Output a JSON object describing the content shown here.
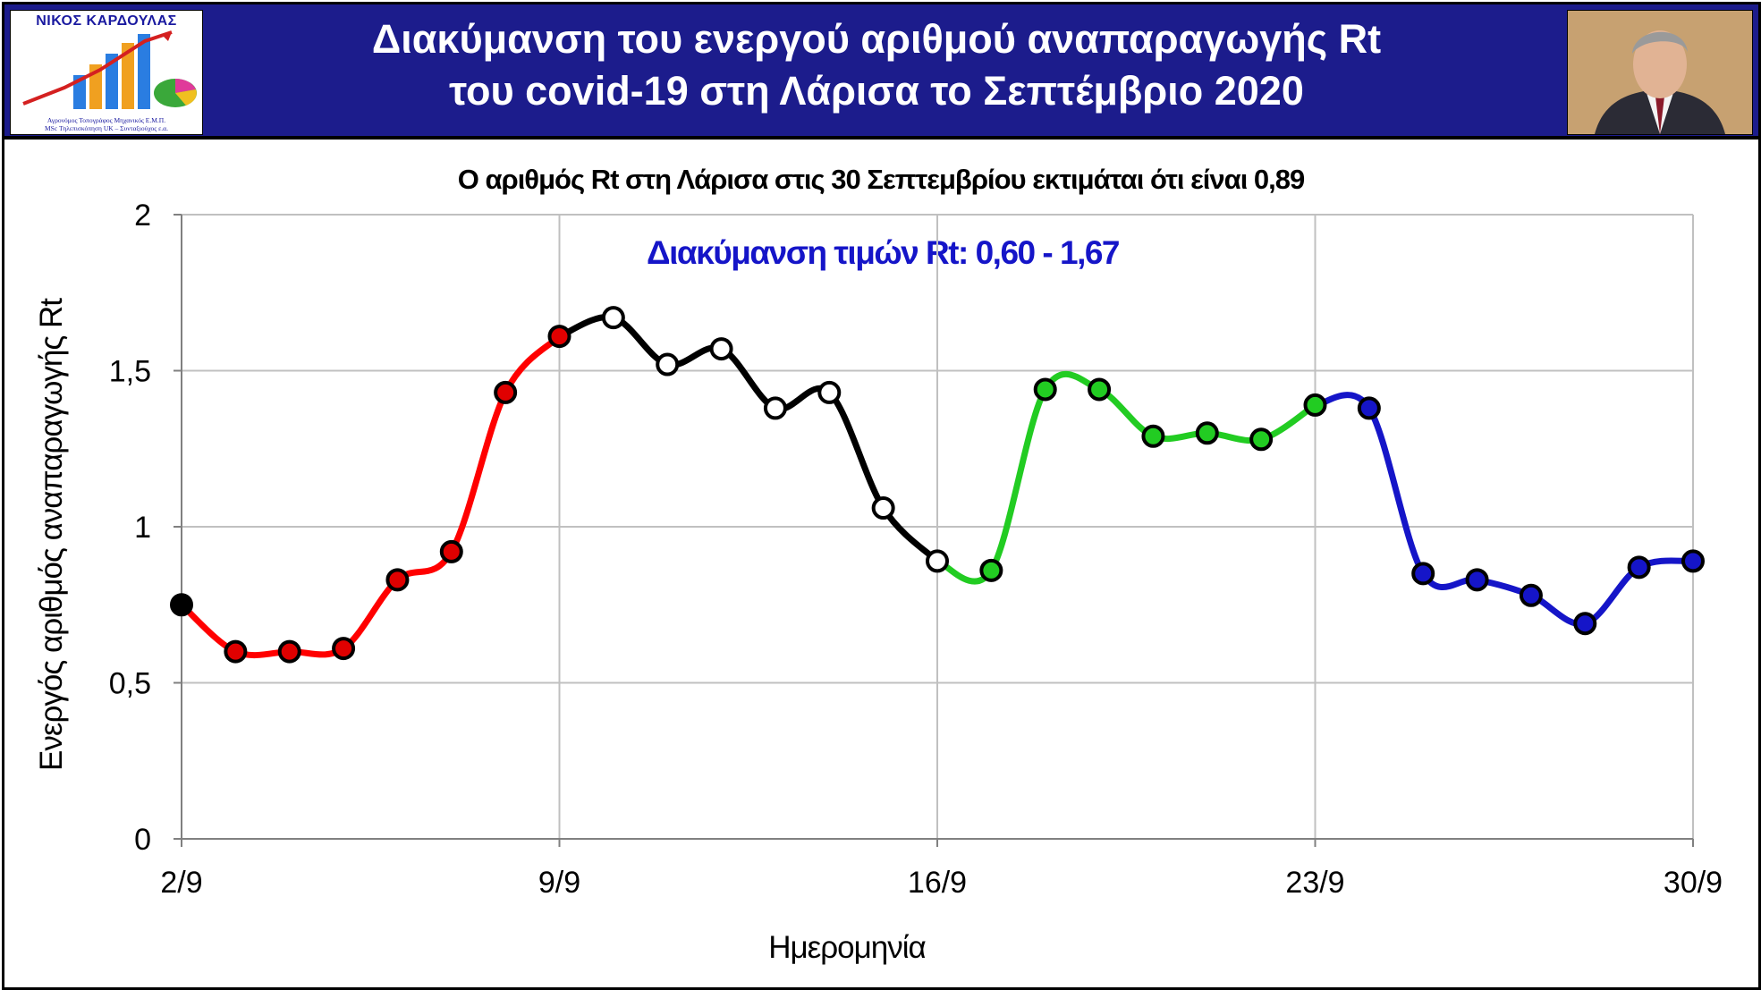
{
  "header": {
    "logo_name": "ΝΙΚΟΣ ΚΑΡΔΟΥΛΑΣ",
    "logo_sub_1": "Αγρονόμος Τοπογράφος Μηχανικός Ε.Μ.Π.",
    "logo_sub_2": "MSc Τηλεπισκόπηση UK – Συνταξιούχος ε.α.",
    "title_line1": "Διακύμανση του ενεργού αριθμού αναπαραγωγής Rt",
    "title_line2": "του covid-19 στη Λάρισα το Σεπτέμβριο 2020"
  },
  "chart_data": {
    "type": "line",
    "title": "Ο αριθμός Rt στη Λάρισα στις 30 Σεπτεμβρίου εκτιμάται ότι είναι 0,89",
    "annotation": "Διακύμανση τιμών Rt: 0,60 - 1,67",
    "xlabel": "Ημερομηνία",
    "ylabel": "Ενεργός αριθμός αναπαραγωγής Rt",
    "ylim": [
      0,
      2
    ],
    "y_ticks": [
      "0",
      "0,5",
      "1",
      "1,5",
      "2"
    ],
    "x_ticks": [
      "2/9",
      "9/9",
      "16/9",
      "23/9",
      "30/9"
    ],
    "x_tick_days": [
      2,
      9,
      16,
      23,
      30
    ],
    "xlim": [
      2,
      30
    ],
    "grid": true,
    "x": [
      2,
      3,
      4,
      5,
      6,
      7,
      8,
      9,
      10,
      11,
      12,
      13,
      14,
      15,
      16,
      17,
      18,
      19,
      20,
      21,
      22,
      23,
      24,
      25,
      26,
      27,
      28,
      29,
      30
    ],
    "values": [
      0.75,
      0.6,
      0.6,
      0.61,
      0.83,
      0.92,
      1.43,
      1.61,
      1.67,
      1.52,
      1.57,
      1.38,
      1.43,
      1.06,
      0.89,
      0.86,
      1.44,
      1.44,
      1.29,
      1.3,
      1.28,
      1.39,
      1.38,
      0.85,
      0.83,
      0.78,
      0.69,
      0.87,
      0.89
    ],
    "marker_fill": [
      "#000000",
      "#e00000",
      "#e00000",
      "#e00000",
      "#e00000",
      "#e00000",
      "#e00000",
      "#e00000",
      "#ffffff",
      "#ffffff",
      "#ffffff",
      "#ffffff",
      "#ffffff",
      "#ffffff",
      "#ffffff",
      "#22cc22",
      "#22cc22",
      "#22cc22",
      "#22cc22",
      "#22cc22",
      "#22cc22",
      "#22cc22",
      "#1515c8",
      "#1515c8",
      "#1515c8",
      "#1515c8",
      "#1515c8",
      "#1515c8",
      "#1515c8"
    ],
    "segments": [
      {
        "from": 0,
        "to": 7,
        "color": "#ff0000"
      },
      {
        "from": 7,
        "to": 14,
        "color": "#000000"
      },
      {
        "from": 14,
        "to": 21,
        "color": "#22cc22"
      },
      {
        "from": 21,
        "to": 28,
        "color": "#1515c8"
      }
    ],
    "colors": {
      "grid": "#c0c0c0",
      "axis": "#808080",
      "annotation": "#1515c8"
    }
  }
}
